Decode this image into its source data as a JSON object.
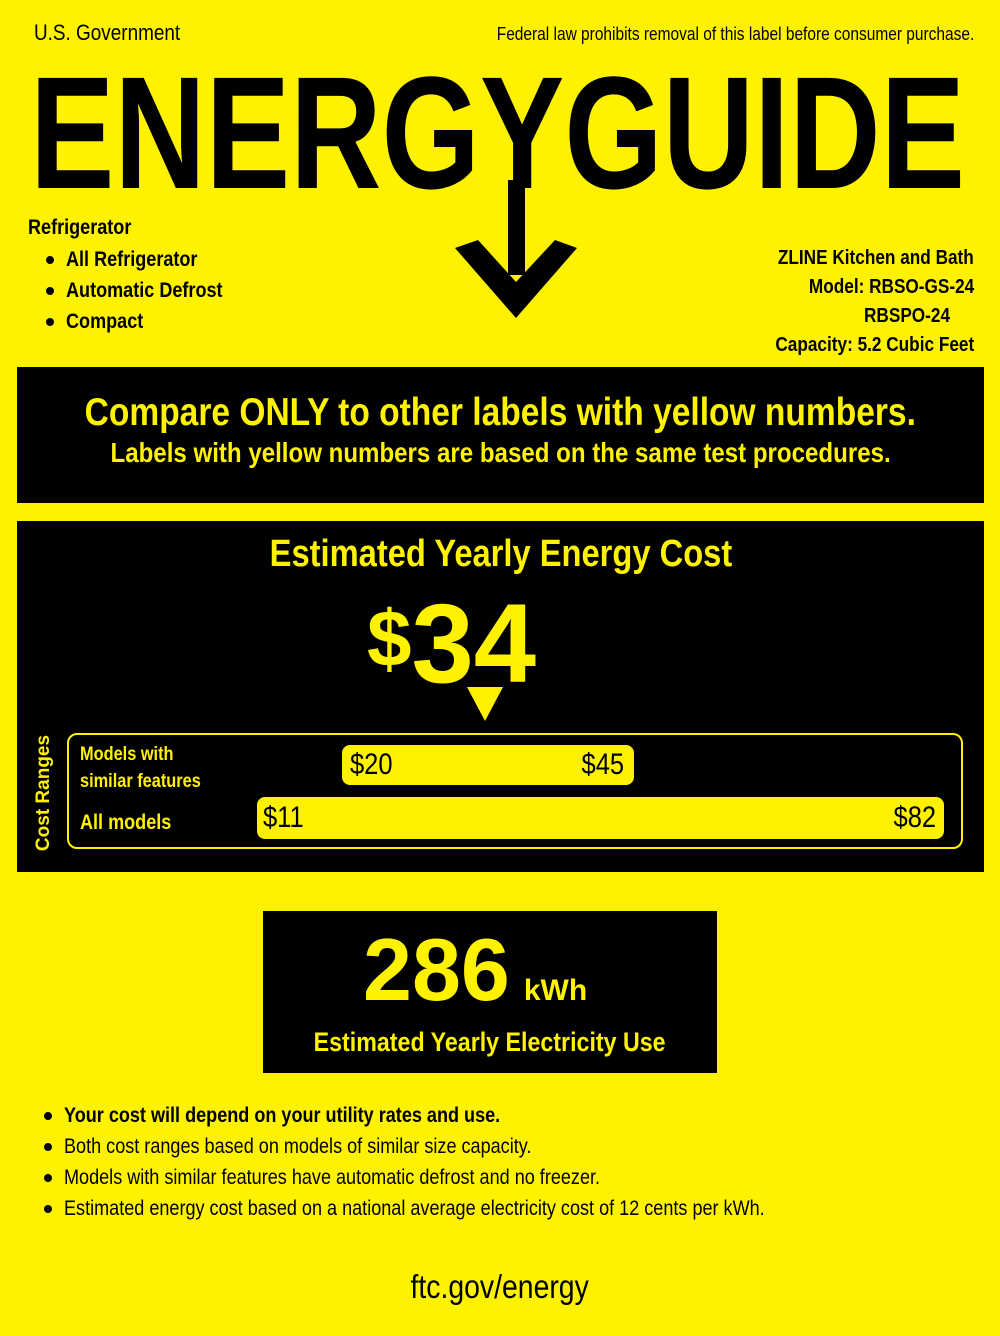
{
  "header": {
    "agency": "U.S. Government",
    "notice": "Federal law prohibits removal of this label before consumer purchase.",
    "title": "ENERGYGUIDE"
  },
  "product": {
    "category": "Refrigerator",
    "features": [
      "All Refrigerator",
      "Automatic Defrost",
      "Compact"
    ],
    "manufacturer": "ZLINE Kitchen and Bath",
    "model_line1": "Model: RBSO-GS-24",
    "model_line2": "RBSPO-24",
    "capacity": "Capacity: 5.2 Cubic Feet"
  },
  "compare": {
    "headline": "Compare ONLY to other labels with yellow numbers.",
    "subline": "Labels with yellow numbers are based on the same test procedures."
  },
  "cost": {
    "title": "Estimated Yearly Energy Cost",
    "currency": "$",
    "value": "34",
    "ranges_label": "Cost Ranges",
    "similar_label_1": "Models with",
    "similar_label_2": "similar features",
    "similar_min": "$20",
    "similar_max": "$45",
    "all_label": "All models",
    "all_min": "$11",
    "all_max": "$82"
  },
  "electricity": {
    "value": "286",
    "unit": "kWh",
    "label": "Estimated Yearly Electricity Use"
  },
  "notes": [
    "Your cost will depend on your utility rates and use.",
    "Both cost ranges based on models of similar size capacity.",
    "Models with similar features have automatic defrost and no freezer.",
    "Estimated energy cost based on a national average electricity cost of 12 cents per kWh."
  ],
  "footer": {
    "url": "ftc.gov/energy"
  },
  "colors": {
    "label_yellow": "#fff200",
    "box_black": "#000000"
  }
}
